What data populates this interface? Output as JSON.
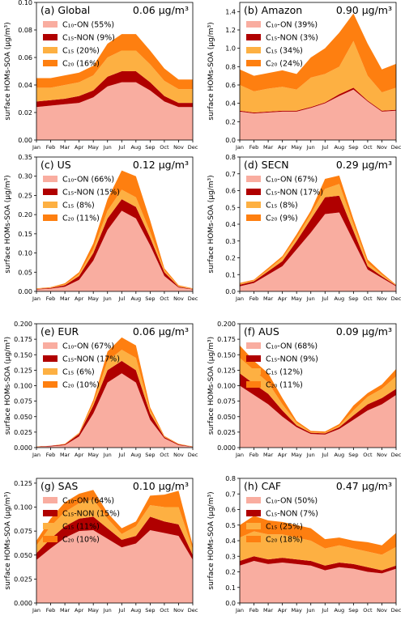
{
  "chart_data": [
    {
      "type": "area",
      "title": "(a) Global",
      "annotation": "0.06 μg/m³",
      "ylabel": "surface HOMs-SOA (μg/m³)",
      "categories": [
        "Jan",
        "Feb",
        "Mar",
        "Apr",
        "May",
        "Jun",
        "Jul",
        "Aug",
        "Sep",
        "Oct",
        "Nov",
        "Dec"
      ],
      "ylim": [
        0,
        0.1
      ],
      "yticks": [
        {
          "value": 0,
          "label": "0.00"
        },
        {
          "value": 0.02,
          "label": "0.02"
        },
        {
          "value": 0.04,
          "label": "0.04"
        },
        {
          "value": 0.06,
          "label": "0.06"
        },
        {
          "value": 0.08,
          "label": "0.08"
        },
        {
          "value": 0.1,
          "label": "0.10"
        }
      ],
      "legend": "upper left",
      "stacked": true,
      "series": [
        {
          "name": "C₁₀-ON (55%)",
          "color": "#f9ada0",
          "values": [
            0.024,
            0.025,
            0.026,
            0.027,
            0.031,
            0.039,
            0.042,
            0.042,
            0.036,
            0.028,
            0.024,
            0.024
          ]
        },
        {
          "name": "C₁₅-NON (9%)",
          "color": "#b00000",
          "values": [
            0.004,
            0.004,
            0.004,
            0.005,
            0.005,
            0.007,
            0.008,
            0.008,
            0.006,
            0.004,
            0.003,
            0.003
          ]
        },
        {
          "name": "C₁₅ (20%)",
          "color": "#fdb042",
          "values": [
            0.01,
            0.009,
            0.01,
            0.01,
            0.011,
            0.014,
            0.015,
            0.015,
            0.013,
            0.011,
            0.01,
            0.01
          ]
        },
        {
          "name": "C₂₀ (16%)",
          "color": "#fe7f10",
          "values": [
            0.007,
            0.007,
            0.007,
            0.007,
            0.007,
            0.01,
            0.012,
            0.012,
            0.01,
            0.009,
            0.007,
            0.007
          ]
        }
      ]
    },
    {
      "type": "area",
      "title": "(b) Amazon",
      "annotation": "0.90 μg/m³",
      "ylabel": "surface HOMs-SOA (μg/m³)",
      "categories": [
        "Jan",
        "Feb",
        "Mar",
        "Apr",
        "May",
        "Jun",
        "Jul",
        "Aug",
        "Sep",
        "Oct",
        "Nov",
        "Dec"
      ],
      "ylim": [
        0,
        1.5
      ],
      "yticks": [
        {
          "value": 0,
          "label": "0.0"
        },
        {
          "value": 0.2,
          "label": "0.2"
        },
        {
          "value": 0.4,
          "label": "0.4"
        },
        {
          "value": 0.6,
          "label": "0.6"
        },
        {
          "value": 0.8,
          "label": "0.8"
        },
        {
          "value": 1,
          "label": "1.0"
        },
        {
          "value": 1.2,
          "label": "1.2"
        },
        {
          "value": 1.4,
          "label": "1.4"
        }
      ],
      "legend": "upper left",
      "stacked": true,
      "series": [
        {
          "name": "C₁₀-ON (39%)",
          "color": "#f9ada0",
          "values": [
            0.31,
            0.29,
            0.3,
            0.31,
            0.31,
            0.35,
            0.4,
            0.48,
            0.55,
            0.42,
            0.31,
            0.32
          ]
        },
        {
          "name": "C₁₅-NON (3%)",
          "color": "#b00000",
          "values": [
            0.01,
            0.01,
            0.01,
            0.01,
            0.01,
            0.01,
            0.01,
            0.02,
            0.02,
            0.01,
            0.01,
            0.01
          ]
        },
        {
          "name": "C₁₅ (34%)",
          "color": "#fdb042",
          "values": [
            0.28,
            0.23,
            0.25,
            0.26,
            0.23,
            0.32,
            0.31,
            0.3,
            0.51,
            0.27,
            0.2,
            0.24
          ]
        },
        {
          "name": "C₂₀ (24%)",
          "color": "#fe7f10",
          "values": [
            0.17,
            0.17,
            0.17,
            0.18,
            0.17,
            0.22,
            0.28,
            0.37,
            0.3,
            0.35,
            0.25,
            0.26
          ]
        }
      ]
    },
    {
      "type": "area",
      "title": "(c) US",
      "annotation": "0.12 μg/m³",
      "ylabel": "surface HOMs-SOA (μg/m³)",
      "categories": [
        "Jan",
        "Feb",
        "Mar",
        "Apr",
        "May",
        "Jun",
        "Jul",
        "Aug",
        "Sep",
        "Oct",
        "Nov",
        "Dec"
      ],
      "ylim": [
        0,
        0.35
      ],
      "yticks": [
        {
          "value": 0,
          "label": "0.00"
        },
        {
          "value": 0.05,
          "label": "0.05"
        },
        {
          "value": 0.1,
          "label": "0.10"
        },
        {
          "value": 0.15,
          "label": "0.15"
        },
        {
          "value": 0.2,
          "label": "0.20"
        },
        {
          "value": 0.25,
          "label": "0.25"
        },
        {
          "value": 0.3,
          "label": "0.30"
        },
        {
          "value": 0.35,
          "label": "0.35"
        }
      ],
      "legend": "upper left",
      "stacked": true,
      "series": [
        {
          "name": "C₁₀-ON (66%)",
          "color": "#f9ada0",
          "values": [
            0.005,
            0.007,
            0.012,
            0.03,
            0.08,
            0.16,
            0.21,
            0.19,
            0.12,
            0.04,
            0.01,
            0.005
          ]
        },
        {
          "name": "C₁₅-NON (15%)",
          "color": "#b00000",
          "values": [
            0.001,
            0.002,
            0.004,
            0.01,
            0.02,
            0.03,
            0.03,
            0.03,
            0.02,
            0.01,
            0.002,
            0.001
          ]
        },
        {
          "name": "C₁₅ (8%)",
          "color": "#fdb042",
          "values": [
            0.001,
            0.001,
            0.002,
            0.005,
            0.01,
            0.02,
            0.025,
            0.025,
            0.015,
            0.005,
            0.002,
            0.001
          ]
        },
        {
          "name": "C₂₀ (11%)",
          "color": "#fe7f10",
          "values": [
            0.001,
            0.001,
            0.003,
            0.005,
            0.015,
            0.03,
            0.05,
            0.055,
            0.03,
            0.005,
            0.002,
            0.001
          ]
        }
      ]
    },
    {
      "type": "area",
      "title": "(d) SECN",
      "annotation": "0.29 μg/m³",
      "ylabel": "surface HOMs-SOA (μg/m³)",
      "categories": [
        "Jan",
        "Feb",
        "Mar",
        "Apr",
        "May",
        "Jun",
        "Jul",
        "Aug",
        "Sep",
        "Oct",
        "Nov",
        "Dec"
      ],
      "ylim": [
        0,
        0.8
      ],
      "yticks": [
        {
          "value": 0,
          "label": "0.0"
        },
        {
          "value": 0.1,
          "label": "0.1"
        },
        {
          "value": 0.2,
          "label": "0.2"
        },
        {
          "value": 0.3,
          "label": "0.3"
        },
        {
          "value": 0.4,
          "label": "0.4"
        },
        {
          "value": 0.5,
          "label": "0.5"
        },
        {
          "value": 0.6,
          "label": "0.6"
        },
        {
          "value": 0.7,
          "label": "0.7"
        },
        {
          "value": 0.8,
          "label": "0.8"
        }
      ],
      "legend": "upper left",
      "stacked": true,
      "series": [
        {
          "name": "C₁₀-ON (67%)",
          "color": "#f9ada0",
          "values": [
            0.03,
            0.05,
            0.1,
            0.15,
            0.25,
            0.35,
            0.46,
            0.47,
            0.3,
            0.13,
            0.08,
            0.03
          ]
        },
        {
          "name": "C₁₅-NON (17%)",
          "color": "#b00000",
          "values": [
            0.01,
            0.01,
            0.02,
            0.03,
            0.05,
            0.08,
            0.1,
            0.1,
            0.06,
            0.02,
            0.01,
            0.005
          ]
        },
        {
          "name": "C₁₅ (8%)",
          "color": "#fdb042",
          "values": [
            0.005,
            0.005,
            0.01,
            0.02,
            0.02,
            0.03,
            0.05,
            0.07,
            0.04,
            0.02,
            0.01,
            0.002
          ]
        },
        {
          "name": "C₂₀ (9%)",
          "color": "#fe7f10",
          "values": [
            0.005,
            0.005,
            0.01,
            0.01,
            0.02,
            0.02,
            0.06,
            0.05,
            0.03,
            0.02,
            0.01,
            0.003
          ]
        }
      ]
    },
    {
      "type": "area",
      "title": "(e) EUR",
      "annotation": "0.06 μg/m³",
      "ylabel": "surface HOMs-SOA (μg/m³)",
      "categories": [
        "Jan",
        "Feb",
        "Mar",
        "Apr",
        "May",
        "Jun",
        "Jul",
        "Aug",
        "Sep",
        "Oct",
        "Nov",
        "Dec"
      ],
      "ylim": [
        0,
        0.2
      ],
      "yticks": [
        {
          "value": 0,
          "label": "0.000"
        },
        {
          "value": 0.025,
          "label": "0.025"
        },
        {
          "value": 0.05,
          "label": "0.050"
        },
        {
          "value": 0.075,
          "label": "0.075"
        },
        {
          "value": 0.1,
          "label": "0.100"
        },
        {
          "value": 0.125,
          "label": "0.125"
        },
        {
          "value": 0.15,
          "label": "0.150"
        },
        {
          "value": 0.175,
          "label": "0.175"
        },
        {
          "value": 0.2,
          "label": "0.200"
        }
      ],
      "legend": "upper left",
      "stacked": true,
      "series": [
        {
          "name": "C₁₀-ON (67%)",
          "color": "#f9ada0",
          "values": [
            0.001,
            0.002,
            0.004,
            0.018,
            0.055,
            0.105,
            0.12,
            0.105,
            0.045,
            0.015,
            0.004,
            0.001
          ]
        },
        {
          "name": "C₁₅-NON (17%)",
          "color": "#b00000",
          "values": [
            0.0005,
            0.001,
            0.001,
            0.004,
            0.013,
            0.02,
            0.02,
            0.02,
            0.01,
            0.002,
            0.001,
            0.0005
          ]
        },
        {
          "name": "C₁₅ (6%)",
          "color": "#fdb042",
          "values": [
            0.0005,
            0,
            0,
            0.001,
            0.004,
            0.015,
            0.018,
            0.02,
            0.005,
            0.001,
            0,
            0.0005
          ]
        },
        {
          "name": "C₂₀ (10%)",
          "color": "#fe7f10",
          "values": [
            0,
            0,
            0.001,
            0.001,
            0.005,
            0.015,
            0.02,
            0.02,
            0.005,
            0.001,
            0.001,
            0
          ]
        }
      ]
    },
    {
      "type": "area",
      "title": "(f) AUS",
      "annotation": "0.09 μg/m³",
      "ylabel": "surface HOMs-SOA (μg/m³)",
      "categories": [
        "Jan",
        "Feb",
        "Mar",
        "Apr",
        "May",
        "Jun",
        "Jul",
        "Aug",
        "Sep",
        "Oct",
        "Nov",
        "Dec"
      ],
      "ylim": [
        0,
        0.2
      ],
      "yticks": [
        {
          "value": 0,
          "label": "0.000"
        },
        {
          "value": 0.025,
          "label": "0.025"
        },
        {
          "value": 0.05,
          "label": "0.050"
        },
        {
          "value": 0.075,
          "label": "0.075"
        },
        {
          "value": 0.1,
          "label": "0.100"
        },
        {
          "value": 0.125,
          "label": "0.125"
        },
        {
          "value": 0.15,
          "label": "0.150"
        },
        {
          "value": 0.175,
          "label": "0.175"
        },
        {
          "value": 0.2,
          "label": "0.200"
        }
      ],
      "legend": "upper left",
      "stacked": true,
      "series": [
        {
          "name": "C₁₀-ON (68%)",
          "color": "#f9ada0",
          "values": [
            0.1,
            0.085,
            0.07,
            0.05,
            0.033,
            0.022,
            0.021,
            0.03,
            0.045,
            0.06,
            0.07,
            0.085
          ]
        },
        {
          "name": "C₁₅-NON (9%)",
          "color": "#b00000",
          "values": [
            0.02,
            0.018,
            0.017,
            0.01,
            0.003,
            0.002,
            0.002,
            0.003,
            0.007,
            0.01,
            0.01,
            0.01
          ]
        },
        {
          "name": "C₁₅ (12%)",
          "color": "#fdb042",
          "values": [
            0.025,
            0.022,
            0.018,
            0.01,
            0.004,
            0.001,
            0.001,
            0.002,
            0.008,
            0.012,
            0.015,
            0.02
          ]
        },
        {
          "name": "C₂₀ (11%)",
          "color": "#fe7f10",
          "values": [
            0.02,
            0.015,
            0.015,
            0.01,
            0.003,
            0.002,
            0.002,
            0.003,
            0.008,
            0.006,
            0.007,
            0.012
          ]
        }
      ]
    },
    {
      "type": "area",
      "title": "(g) SAS",
      "annotation": "0.10 μg/m³",
      "ylabel": "surface HOMs-SOA (μg/m³)",
      "categories": [
        "Jan",
        "Feb",
        "Mar",
        "Apr",
        "May",
        "Jun",
        "Jul",
        "Aug",
        "Sep",
        "Oct",
        "Nov",
        "Dec"
      ],
      "ylim": [
        0,
        0.13
      ],
      "yticks": [
        {
          "value": 0,
          "label": "0.000"
        },
        {
          "value": 0.025,
          "label": "0.025"
        },
        {
          "value": 0.05,
          "label": "0.050"
        },
        {
          "value": 0.075,
          "label": "0.075"
        },
        {
          "value": 0.1,
          "label": "0.100"
        },
        {
          "value": 0.125,
          "label": "0.125"
        }
      ],
      "legend": "upper left",
      "stacked": true,
      "series": [
        {
          "name": "C₁₀-ON (64%)",
          "color": "#f9ada0",
          "values": [
            0.045,
            0.057,
            0.068,
            0.075,
            0.076,
            0.067,
            0.058,
            0.062,
            0.076,
            0.073,
            0.07,
            0.045
          ]
        },
        {
          "name": "C₁₅-NON (15%)",
          "color": "#b00000",
          "values": [
            0.007,
            0.01,
            0.012,
            0.013,
            0.014,
            0.011,
            0.008,
            0.008,
            0.014,
            0.012,
            0.012,
            0.005
          ]
        },
        {
          "name": "C₁₅ (11%)",
          "color": "#fdb042",
          "values": [
            0.008,
            0.013,
            0.015,
            0.016,
            0.018,
            0.01,
            0.006,
            0.01,
            0.012,
            0.015,
            0.018,
            0.006
          ]
        },
        {
          "name": "C₂₀ (10%)",
          "color": "#fe7f10",
          "values": [
            0.005,
            0.008,
            0.01,
            0.01,
            0.01,
            0.006,
            0.006,
            0.005,
            0.01,
            0.013,
            0.017,
            0.004
          ]
        }
      ]
    },
    {
      "type": "area",
      "title": "(h) CAF",
      "annotation": "0.47 μg/m³",
      "ylabel": "surface HOMs-SOA (μg/m³)",
      "categories": [
        "Jan",
        "Feb",
        "Mar",
        "Apr",
        "May",
        "Jun",
        "Jul",
        "Aug",
        "Sep",
        "Oct",
        "Nov",
        "Dec"
      ],
      "ylim": [
        0,
        0.8
      ],
      "yticks": [
        {
          "value": 0,
          "label": "0.0"
        },
        {
          "value": 0.1,
          "label": "0.1"
        },
        {
          "value": 0.2,
          "label": "0.2"
        },
        {
          "value": 0.3,
          "label": "0.3"
        },
        {
          "value": 0.4,
          "label": "0.4"
        },
        {
          "value": 0.5,
          "label": "0.5"
        },
        {
          "value": 0.6,
          "label": "0.6"
        },
        {
          "value": 0.7,
          "label": "0.7"
        },
        {
          "value": 0.8,
          "label": "0.8"
        }
      ],
      "legend": "upper left",
      "stacked": true,
      "series": [
        {
          "name": "C₁₀-ON (50%)",
          "color": "#f9ada0",
          "values": [
            0.24,
            0.27,
            0.25,
            0.26,
            0.25,
            0.24,
            0.21,
            0.23,
            0.22,
            0.2,
            0.19,
            0.22
          ]
        },
        {
          "name": "C₁₅-NON (7%)",
          "color": "#b00000",
          "values": [
            0.03,
            0.03,
            0.03,
            0.03,
            0.03,
            0.03,
            0.03,
            0.03,
            0.03,
            0.03,
            0.02,
            0.02
          ]
        },
        {
          "name": "C₁₅ (25%)",
          "color": "#fdb042",
          "values": [
            0.15,
            0.16,
            0.16,
            0.15,
            0.14,
            0.13,
            0.11,
            0.11,
            0.1,
            0.1,
            0.1,
            0.12
          ]
        },
        {
          "name": "C₂₀ (18%)",
          "color": "#fe7f10",
          "values": [
            0.08,
            0.1,
            0.09,
            0.08,
            0.08,
            0.08,
            0.06,
            0.05,
            0.05,
            0.06,
            0.06,
            0.09
          ]
        }
      ]
    }
  ]
}
